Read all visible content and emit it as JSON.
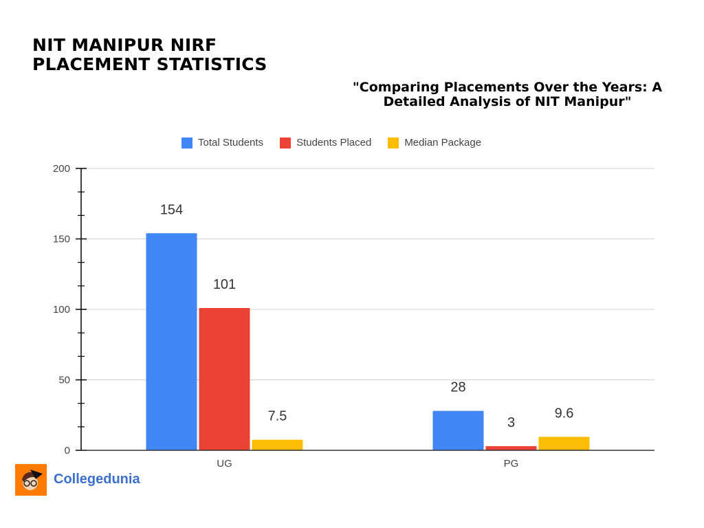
{
  "header": {
    "title_line1": "NIT MANIPUR NIRF",
    "title_line2": "PLACEMENT STATISTICS",
    "subtitle": "\"Comparing Placements Over the Years: A Detailed Analysis of NIT Manipur\""
  },
  "brand": {
    "name": "Collegedunia",
    "logo_color": "#ff7a00",
    "text_color": "#3b6fd0"
  },
  "chart_data": {
    "type": "bar",
    "categories": [
      "UG",
      "PG"
    ],
    "series": [
      {
        "name": "Total Students",
        "color": "#4285f4",
        "values": [
          154,
          28
        ]
      },
      {
        "name": "Students Placed",
        "color": "#ea4335",
        "values": [
          101,
          3
        ]
      },
      {
        "name": "Median Package",
        "color": "#fbbc04",
        "values": [
          7.5,
          9.6
        ]
      }
    ],
    "ylim": [
      0,
      200
    ],
    "yticks": [
      0,
      50,
      100,
      150,
      200
    ],
    "grid": true,
    "legend": "top",
    "data_labels": true
  }
}
